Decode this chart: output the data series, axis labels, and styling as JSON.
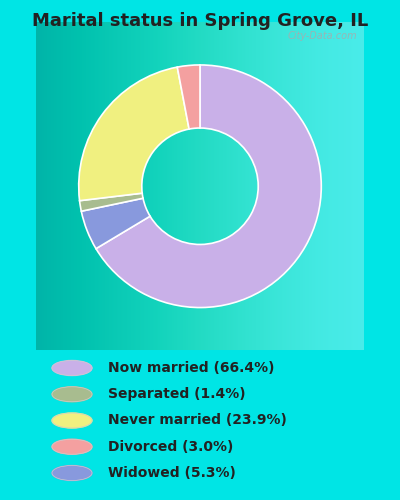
{
  "title": "Marital status in Spring Grove, IL",
  "slices": [
    66.4,
    5.3,
    1.4,
    23.9,
    3.0
  ],
  "slice_order_labels": [
    "Now married",
    "Widowed",
    "Separated",
    "Never married",
    "Divorced"
  ],
  "colors_pie": [
    "#c9b0e8",
    "#8899dd",
    "#a8bc8f",
    "#f0f080",
    "#f4a0a0"
  ],
  "legend_labels": [
    "Now married (66.4%)",
    "Separated (1.4%)",
    "Never married (23.9%)",
    "Divorced (3.0%)",
    "Widowed (5.3%)"
  ],
  "legend_colors": [
    "#c9b0e8",
    "#a8bc8f",
    "#f0f080",
    "#f4a0a0",
    "#8899dd"
  ],
  "background_cyan": "#00e5e5",
  "chart_bg_top": "#f0f8f0",
  "chart_bg_bottom": "#d0eee0",
  "title_fontsize": 13,
  "legend_fontsize": 10,
  "watermark": "City-Data.com"
}
